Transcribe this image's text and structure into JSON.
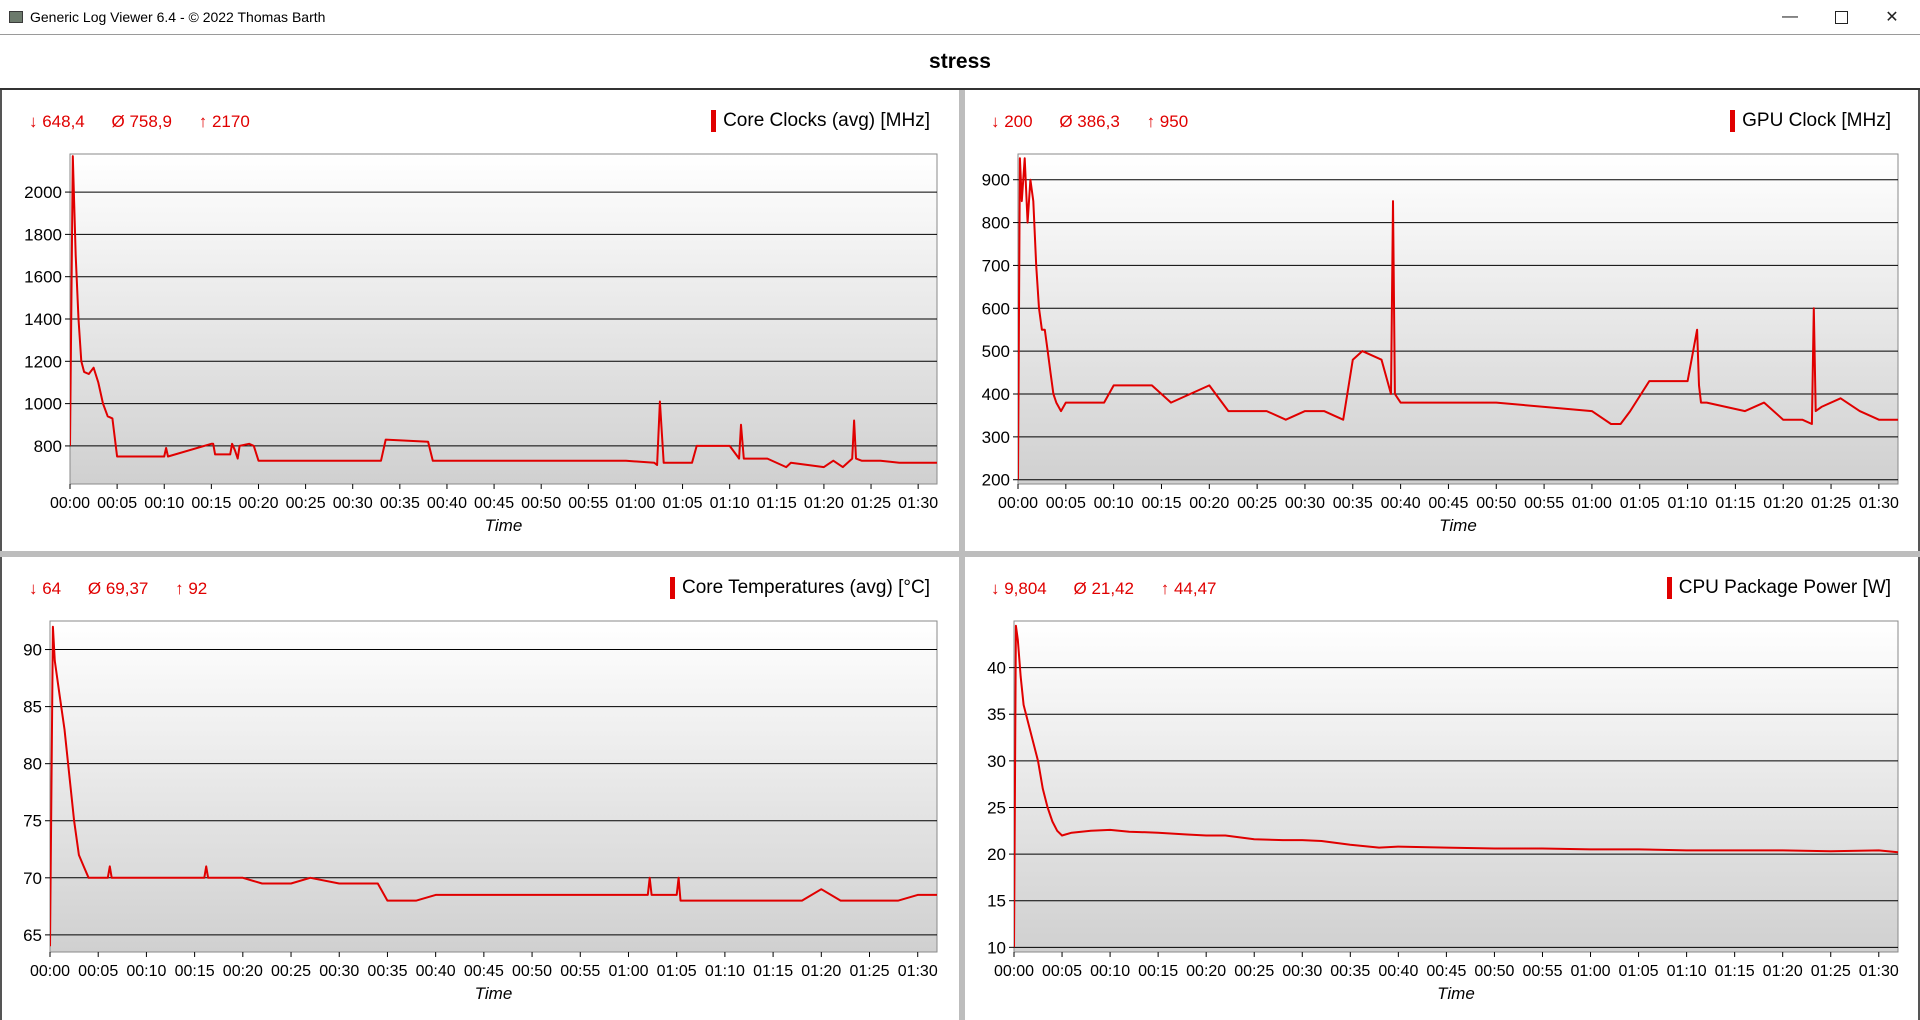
{
  "window": {
    "title": "Generic Log Viewer 6.4 - © 2022 Thomas Barth",
    "minimize_icon": "minimize-icon",
    "maximize_icon": "maximize-icon",
    "close_icon": "close-icon"
  },
  "header": {
    "title": "stress"
  },
  "colors": {
    "series": "#e00000",
    "grid": "#000000",
    "plot_bg_top": "#ffffff",
    "plot_bg_bottom": "#d0d0d0"
  },
  "panels": [
    {
      "title": "Core Clocks (avg) [MHz]",
      "min": "↓ 648,4",
      "avg": "Ø 758,9",
      "max": "↑ 2170"
    },
    {
      "title": "GPU Clock [MHz]",
      "min": "↓ 200",
      "avg": "Ø 386,3",
      "max": "↑ 950"
    },
    {
      "title": "Core Temperatures (avg) [°C]",
      "min": "↓ 64",
      "avg": "Ø 69,37",
      "max": "↑ 92"
    },
    {
      "title": "CPU Package Power [W]",
      "min": "↓ 9,804",
      "avg": "Ø 21,42",
      "max": "↑ 44,47"
    }
  ],
  "chart_data": [
    {
      "type": "line",
      "title": "Core Clocks (avg) [MHz]",
      "xlabel": "Time",
      "ylabel": "",
      "xticks": [
        "00:00",
        "00:05",
        "00:10",
        "00:15",
        "00:20",
        "00:25",
        "00:30",
        "00:35",
        "00:40",
        "00:45",
        "00:50",
        "00:55",
        "01:00",
        "01:05",
        "01:10",
        "01:15",
        "01:20",
        "01:25",
        "01:30"
      ],
      "yticks": [
        800,
        1000,
        1200,
        1400,
        1600,
        1800,
        2000
      ],
      "xlim": [
        0,
        92
      ],
      "ylim": [
        620,
        2180
      ],
      "series": [
        {
          "x": [
            0,
            0.3,
            0.6,
            0.9,
            1.2,
            1.5,
            2,
            2.5,
            3,
            3.5,
            4,
            4.5,
            5,
            10,
            10.2,
            10.4,
            15,
            15.2,
            15.4,
            17,
            17.2,
            17.5,
            17.8,
            18,
            19,
            19.5,
            20,
            21,
            22,
            30,
            33,
            33.5,
            38,
            38.5,
            40,
            50,
            55,
            59,
            62,
            62.3,
            62.6,
            63,
            64,
            66,
            66.5,
            67,
            68,
            70,
            71,
            71.2,
            71.5,
            72,
            74,
            76,
            76.5,
            80,
            81,
            82,
            83,
            83.2,
            83.4,
            84,
            86,
            88,
            90,
            92
          ],
          "y": [
            800,
            2170,
            1700,
            1400,
            1200,
            1150,
            1140,
            1170,
            1100,
            1000,
            940,
            930,
            750,
            750,
            790,
            750,
            810,
            810,
            760,
            760,
            810,
            780,
            740,
            800,
            810,
            800,
            730,
            730,
            730,
            730,
            730,
            830,
            820,
            730,
            730,
            730,
            730,
            730,
            720,
            710,
            1010,
            720,
            720,
            720,
            800,
            800,
            800,
            800,
            740,
            900,
            740,
            740,
            740,
            700,
            720,
            700,
            730,
            700,
            740,
            920,
            740,
            730,
            730,
            720,
            720,
            720
          ]
        }
      ]
    },
    {
      "type": "line",
      "title": "GPU Clock [MHz]",
      "xlabel": "Time",
      "ylabel": "",
      "xticks": [
        "00:00",
        "00:05",
        "00:10",
        "00:15",
        "00:20",
        "00:25",
        "00:30",
        "00:35",
        "00:40",
        "00:45",
        "00:50",
        "00:55",
        "01:00",
        "01:05",
        "01:10",
        "01:15",
        "01:20",
        "01:25",
        "01:30"
      ],
      "yticks": [
        200,
        300,
        400,
        500,
        600,
        700,
        800,
        900
      ],
      "xlim": [
        0,
        92
      ],
      "ylim": [
        190,
        960
      ],
      "series": [
        {
          "x": [
            0,
            0.2,
            0.4,
            0.7,
            1,
            1.3,
            1.6,
            1.9,
            2.2,
            2.5,
            2.8,
            3.1,
            3.4,
            3.7,
            4,
            4.5,
            5,
            9,
            10,
            14,
            16,
            20,
            22,
            26,
            28,
            30,
            32,
            33,
            34,
            35,
            36,
            38,
            39,
            39.2,
            39.4,
            40,
            45,
            50,
            55,
            60,
            62,
            63,
            64,
            66,
            67,
            68,
            70,
            71,
            71.2,
            71.4,
            72,
            76,
            78,
            80,
            82,
            83,
            83.2,
            83.4,
            84,
            86,
            88,
            90,
            92
          ],
          "y": [
            200,
            950,
            850,
            950,
            800,
            900,
            850,
            700,
            600,
            550,
            550,
            500,
            450,
            400,
            380,
            360,
            380,
            380,
            420,
            420,
            380,
            420,
            360,
            360,
            340,
            360,
            360,
            350,
            340,
            480,
            500,
            480,
            400,
            850,
            400,
            380,
            380,
            380,
            370,
            360,
            330,
            330,
            360,
            430,
            430,
            430,
            430,
            550,
            420,
            380,
            380,
            360,
            380,
            340,
            340,
            330,
            600,
            360,
            370,
            390,
            360,
            340,
            340
          ]
        }
      ]
    },
    {
      "type": "line",
      "title": "Core Temperatures (avg) [°C]",
      "xlabel": "Time",
      "ylabel": "",
      "xticks": [
        "00:00",
        "00:05",
        "00:10",
        "00:15",
        "00:20",
        "00:25",
        "00:30",
        "00:35",
        "00:40",
        "00:45",
        "00:50",
        "00:55",
        "01:00",
        "01:05",
        "01:10",
        "01:15",
        "01:20",
        "01:25",
        "01:30"
      ],
      "yticks": [
        65,
        70,
        75,
        80,
        85,
        90
      ],
      "xlim": [
        0,
        92
      ],
      "ylim": [
        63.5,
        92.5
      ],
      "series": [
        {
          "x": [
            0,
            0.3,
            0.5,
            1,
            1.5,
            2,
            2.5,
            3,
            3.5,
            4,
            4.5,
            5,
            6,
            6.2,
            6.4,
            16,
            16.2,
            16.4,
            20,
            22,
            25,
            27,
            30,
            34,
            35,
            38,
            40,
            45,
            50,
            55,
            60,
            62,
            62.2,
            62.4,
            63,
            65,
            65.2,
            65.4,
            66,
            70,
            75,
            78,
            80,
            82,
            85,
            88,
            90,
            92
          ],
          "y": [
            64,
            92,
            89,
            86,
            83,
            79,
            75,
            72,
            71,
            70,
            70,
            70,
            70,
            71,
            70,
            70,
            71,
            70,
            70,
            69.5,
            69.5,
            70,
            69.5,
            69.5,
            68,
            68,
            68.5,
            68.5,
            68.5,
            68.5,
            68.5,
            68.5,
            70,
            68.5,
            68.5,
            68.5,
            70,
            68,
            68,
            68,
            68,
            68,
            69,
            68,
            68,
            68,
            68.5,
            68.5
          ]
        }
      ]
    },
    {
      "type": "line",
      "title": "CPU Package Power [W]",
      "xlabel": "Time",
      "ylabel": "",
      "xticks": [
        "00:00",
        "00:05",
        "00:10",
        "00:15",
        "00:20",
        "00:25",
        "00:30",
        "00:35",
        "00:40",
        "00:45",
        "00:50",
        "00:55",
        "01:00",
        "01:05",
        "01:10",
        "01:15",
        "01:20",
        "01:25",
        "01:30"
      ],
      "yticks": [
        10,
        15,
        20,
        25,
        30,
        35,
        40
      ],
      "xlim": [
        0,
        92
      ],
      "ylim": [
        9.5,
        45
      ],
      "series": [
        {
          "x": [
            0,
            0.2,
            0.4,
            0.7,
            1,
            1.5,
            2,
            2.5,
            3,
            3.5,
            4,
            4.5,
            5,
            6,
            8,
            10,
            12,
            15,
            18,
            20,
            22,
            25,
            28,
            30,
            32,
            35,
            38,
            40,
            45,
            50,
            55,
            60,
            65,
            70,
            75,
            80,
            85,
            90,
            92
          ],
          "y": [
            10,
            44.5,
            43,
            39,
            36,
            34,
            32,
            30,
            27,
            25,
            23.5,
            22.5,
            22,
            22.3,
            22.5,
            22.6,
            22.4,
            22.3,
            22.1,
            22,
            22,
            21.6,
            21.5,
            21.5,
            21.4,
            21,
            20.7,
            20.8,
            20.7,
            20.6,
            20.6,
            20.5,
            20.5,
            20.4,
            20.4,
            20.4,
            20.3,
            20.4,
            20.2
          ]
        }
      ]
    }
  ]
}
